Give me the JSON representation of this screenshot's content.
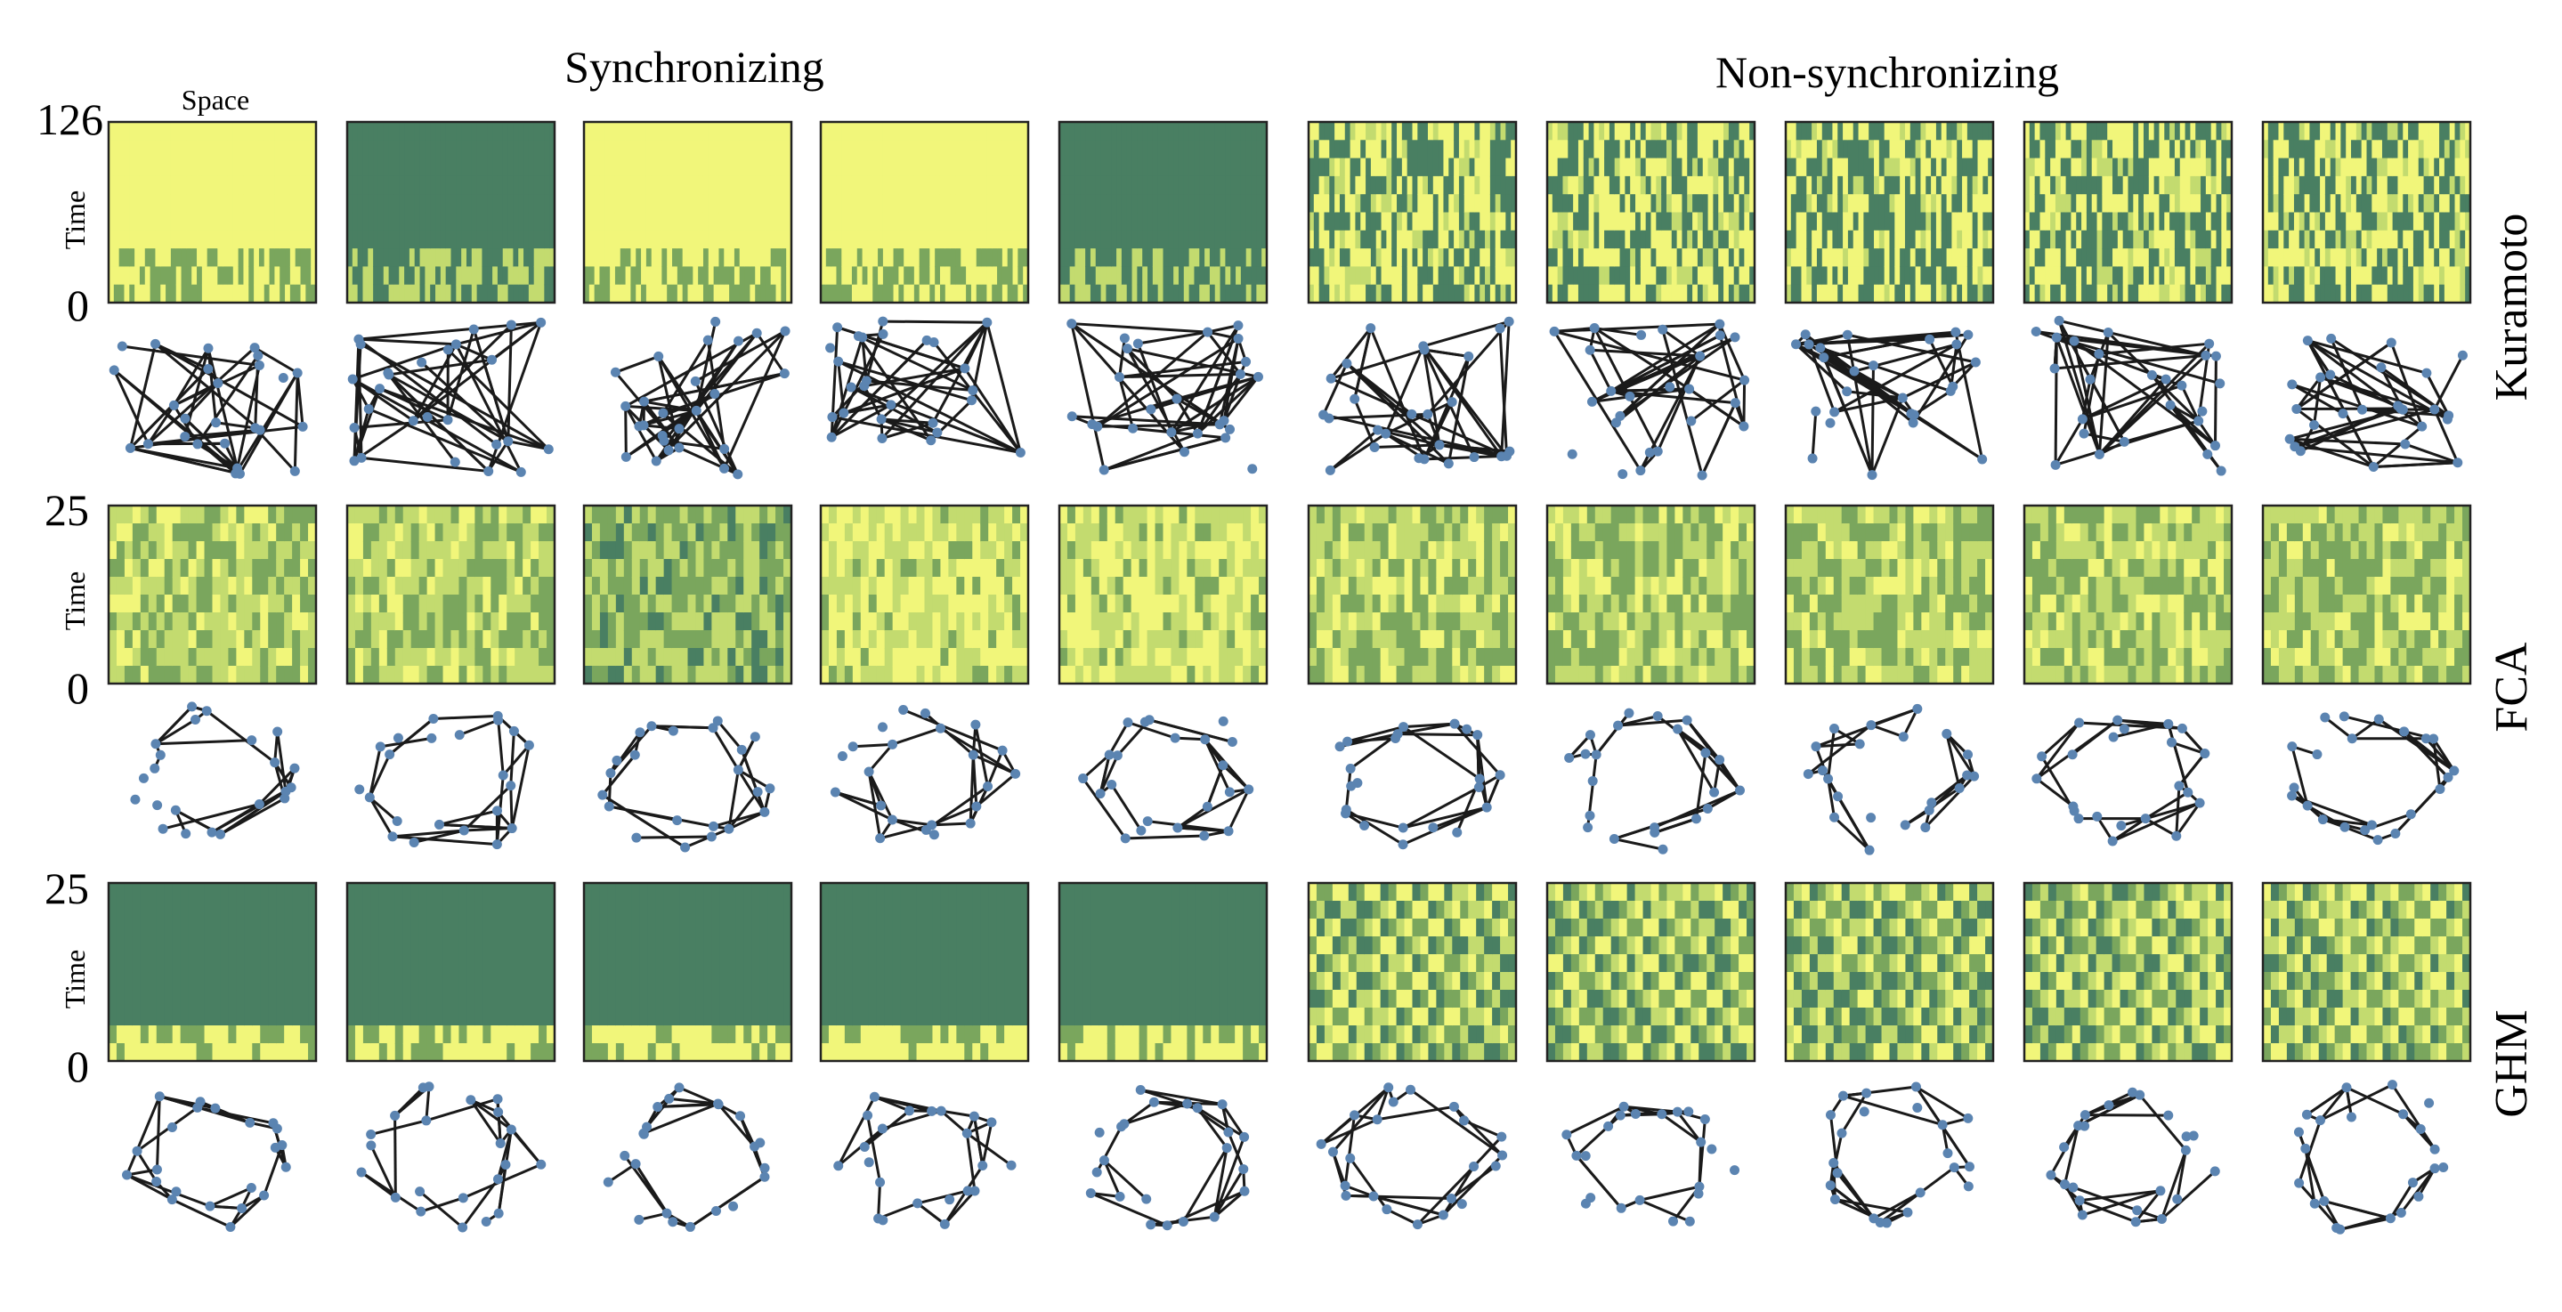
{
  "headers": {
    "space_label": "Space",
    "time_label": "Time",
    "synchronizing": "Synchronizing",
    "non_synchronizing": "Non-synchronizing"
  },
  "rows": [
    {
      "model": "Kuramoto",
      "t_max": "126",
      "t_min": "0",
      "cells": 40,
      "levels": 6,
      "edges": 45,
      "nodes": 26
    },
    {
      "model": "FCA",
      "t_max": "25",
      "t_min": "0",
      "cells": 26,
      "levels": 4,
      "edges": 30,
      "nodes": 22
    },
    {
      "model": "GHM",
      "t_max": "25",
      "t_min": "0",
      "cells": 26,
      "levels": 4,
      "edges": 30,
      "nodes": 22
    }
  ],
  "groups": [
    {
      "label": "Synchronizing",
      "count": 5
    },
    {
      "label": "Non-synchronizing",
      "count": 5
    }
  ],
  "colors": {
    "dark_green": "#497f62",
    "mid_green": "#7aa65d",
    "light_green": "#c3db6f",
    "yellow": "#f1f67a",
    "edge": "#1a1a1a",
    "node": "#5b84b1",
    "frame": "#222222"
  }
}
